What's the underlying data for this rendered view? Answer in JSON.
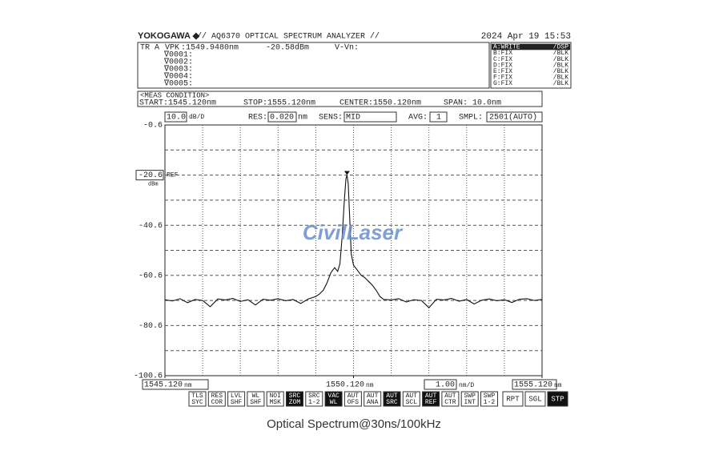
{
  "header": {
    "brand": "YOKOGAWA ◆",
    "model": "// AQ6370 OPTICAL SPECTRUM ANALYZER //",
    "datetime": "2024 Apr 19 15:53"
  },
  "marker_panel": {
    "trace": "TR A",
    "marker": "VPK",
    "wavelength": ":1549.9480nm",
    "level": "-20.58dBm",
    "delta": "V-Vn:",
    "markers": [
      "∇0001:",
      "∇0002:",
      "∇0003:",
      "∇0004:",
      "∇0005:"
    ]
  },
  "traces": [
    {
      "name": "A:WRITE",
      "mode": "/DSP",
      "active": true
    },
    {
      "name": "B:FIX",
      "mode": "/BLK",
      "active": false
    },
    {
      "name": "C:FIX",
      "mode": "/BLK",
      "active": false
    },
    {
      "name": "D:FIX",
      "mode": "/BLK",
      "active": false
    },
    {
      "name": "E:FIX",
      "mode": "/BLK",
      "active": false
    },
    {
      "name": "F:FIX",
      "mode": "/BLK",
      "active": false
    },
    {
      "name": "G:FIX",
      "mode": "/BLK",
      "active": false
    }
  ],
  "meas_condition": {
    "title": "<MEAS CONDITION>",
    "start": "START:1545.120nm",
    "stop": "STOP:1555.120nm",
    "center": "CENTER:1550.120nm",
    "span": "SPAN:  10.0nm"
  },
  "settings": {
    "res_label": "RES:",
    "res": "0.020",
    "res_unit": "nm",
    "sens_label": "SENS:",
    "sens": "MID",
    "avg_label": "AVG:",
    "avg": "1",
    "smpl_label": "SMPL:",
    "smpl": "2501(AUTO)"
  },
  "chart_data": {
    "type": "line",
    "color": "#111111",
    "y_per_div": {
      "value": 10,
      "label": "10.0"
    },
    "y_div_unit": "dB/D",
    "x_per_div": {
      "value": 1,
      "label": "1.00"
    },
    "x_div_unit": "nm/D",
    "x_unit": "nm",
    "ref_label": "REF",
    "ref_unit": "dBm",
    "ref_level": -20.6,
    "xlim": [
      1545.12,
      1555.12
    ],
    "ylim": [
      -100.6,
      -0.6
    ],
    "xticks": [
      {
        "value": 1545.12,
        "label": "1545.120"
      },
      {
        "value": 1550.12,
        "label": "1550.120"
      },
      {
        "value": 1555.12,
        "label": "1555.120"
      }
    ],
    "yticks": [
      -0.6,
      -20.6,
      -40.6,
      -60.6,
      -80.6,
      -100.6
    ],
    "grid": true,
    "peak_marker": {
      "x": 1549.948,
      "y": -20.58
    },
    "x": [
      1545.12,
      1545.32,
      1545.52,
      1545.72,
      1545.92,
      1546.12,
      1546.32,
      1546.52,
      1546.72,
      1546.92,
      1547.12,
      1547.32,
      1547.52,
      1547.72,
      1547.92,
      1548.12,
      1548.32,
      1548.52,
      1548.72,
      1548.92,
      1549.12,
      1549.22,
      1549.32,
      1549.42,
      1549.52,
      1549.62,
      1549.7,
      1549.76,
      1549.82,
      1549.88,
      1549.92,
      1549.948,
      1549.98,
      1550.02,
      1550.06,
      1550.12,
      1550.22,
      1550.32,
      1550.42,
      1550.52,
      1550.62,
      1550.72,
      1550.82,
      1550.92,
      1551.12,
      1551.32,
      1551.52,
      1551.72,
      1551.92,
      1552.12,
      1552.32,
      1552.52,
      1552.72,
      1552.92,
      1553.12,
      1553.32,
      1553.52,
      1553.72,
      1553.92,
      1554.12,
      1554.32,
      1554.52,
      1554.72,
      1554.92,
      1555.12
    ],
    "values": [
      -70.3,
      -70.8,
      -69.9,
      -71.5,
      -70.2,
      -70.6,
      -73.1,
      -70.0,
      -70.4,
      -69.8,
      -71.0,
      -70.3,
      -72.4,
      -70.1,
      -70.5,
      -69.9,
      -70.7,
      -70.2,
      -71.8,
      -70.0,
      -69.0,
      -68.0,
      -66.5,
      -63.5,
      -59.5,
      -57.5,
      -59.0,
      -56.0,
      -45.0,
      -30.0,
      -22.0,
      -20.58,
      -24.0,
      -38.0,
      -52.0,
      -56.5,
      -58.5,
      -60.5,
      -61.5,
      -63.0,
      -64.5,
      -66.5,
      -69.0,
      -70.2,
      -70.4,
      -69.9,
      -71.2,
      -70.3,
      -70.6,
      -73.5,
      -70.1,
      -70.4,
      -69.8,
      -70.9,
      -70.2,
      -72.0,
      -70.5,
      -70.0,
      -70.7,
      -70.3,
      -71.4,
      -70.1,
      -69.9,
      -70.6,
      -70.2
    ]
  },
  "watermark": "CivilLaser",
  "buttons": [
    {
      "top": "TLS",
      "bottom": "SYC",
      "active": false
    },
    {
      "top": "RES",
      "bottom": "COR",
      "active": false
    },
    {
      "top": "LVL",
      "bottom": "SHF",
      "active": false
    },
    {
      "top": "WL",
      "bottom": "SHF",
      "active": false
    },
    {
      "top": "NOI",
      "bottom": "MSK",
      "active": false
    },
    {
      "top": "SRC",
      "bottom": "ZOM",
      "active": true
    },
    {
      "top": "SRC",
      "bottom": "1-2",
      "active": false
    },
    {
      "top": "VAC",
      "bottom": "WL",
      "active": true
    },
    {
      "top": "AUT",
      "bottom": "OFS",
      "active": false
    },
    {
      "top": "AUT",
      "bottom": "ANA",
      "active": false
    },
    {
      "top": "AUT",
      "bottom": "SRC",
      "active": true
    },
    {
      "top": "AUT",
      "bottom": "SCL",
      "active": false
    },
    {
      "top": "AUT",
      "bottom": "REF",
      "active": true
    },
    {
      "top": "AUT",
      "bottom": "CTR",
      "active": false
    },
    {
      "top": "SWP",
      "bottom": "INT",
      "active": false
    },
    {
      "top": "SWP",
      "bottom": "1-2",
      "active": false
    }
  ],
  "run_buttons": [
    {
      "label": "RPT",
      "active": false
    },
    {
      "label": "SGL",
      "active": false
    },
    {
      "label": "STP",
      "active": true
    }
  ],
  "caption": "Optical Spectrum@30ns/100kHz"
}
